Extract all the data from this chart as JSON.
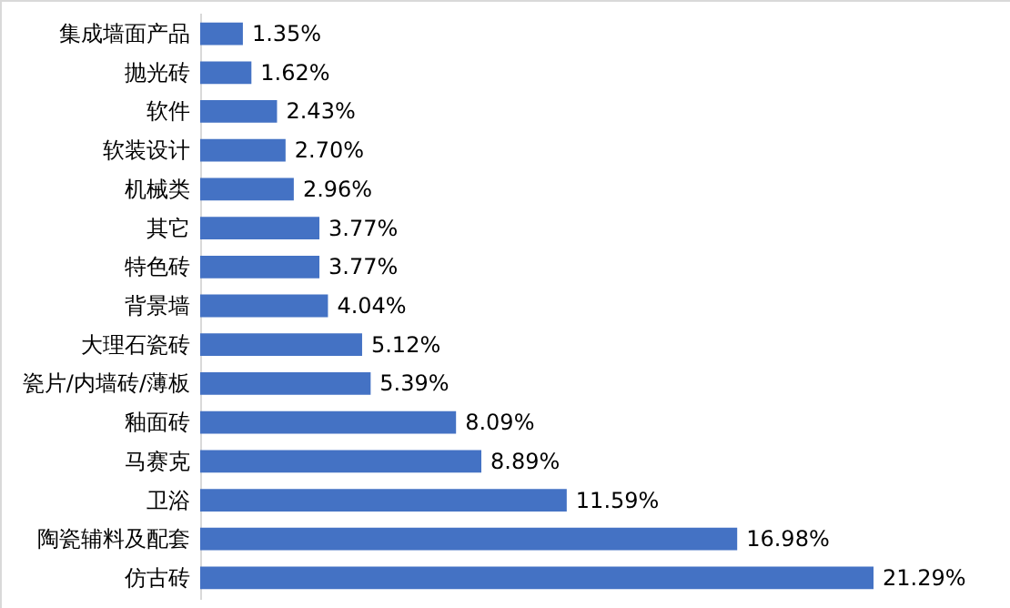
{
  "chart_data": {
    "type": "bar",
    "orientation": "horizontal",
    "categories": [
      "集成墙面产品",
      "抛光砖",
      "软件",
      "软装设计",
      "机械类",
      "其它",
      "特色砖",
      "背景墙",
      "大理石瓷砖",
      "瓷片/内墙砖/薄板",
      "釉面砖",
      "马赛克",
      "卫浴",
      "陶瓷辅料及配套",
      "仿古砖"
    ],
    "values": [
      1.35,
      1.62,
      2.43,
      2.7,
      2.96,
      3.77,
      3.77,
      4.04,
      5.12,
      5.39,
      8.09,
      8.89,
      11.59,
      16.98,
      21.29
    ],
    "value_labels": [
      "1.35%",
      "1.62%",
      "2.43%",
      "2.70%",
      "2.96%",
      "3.77%",
      "3.77%",
      "4.04%",
      "5.12%",
      "5.39%",
      "8.09%",
      "8.89%",
      "11.59%",
      "16.98%",
      "21.29%"
    ],
    "color": "#4472c4"
  }
}
